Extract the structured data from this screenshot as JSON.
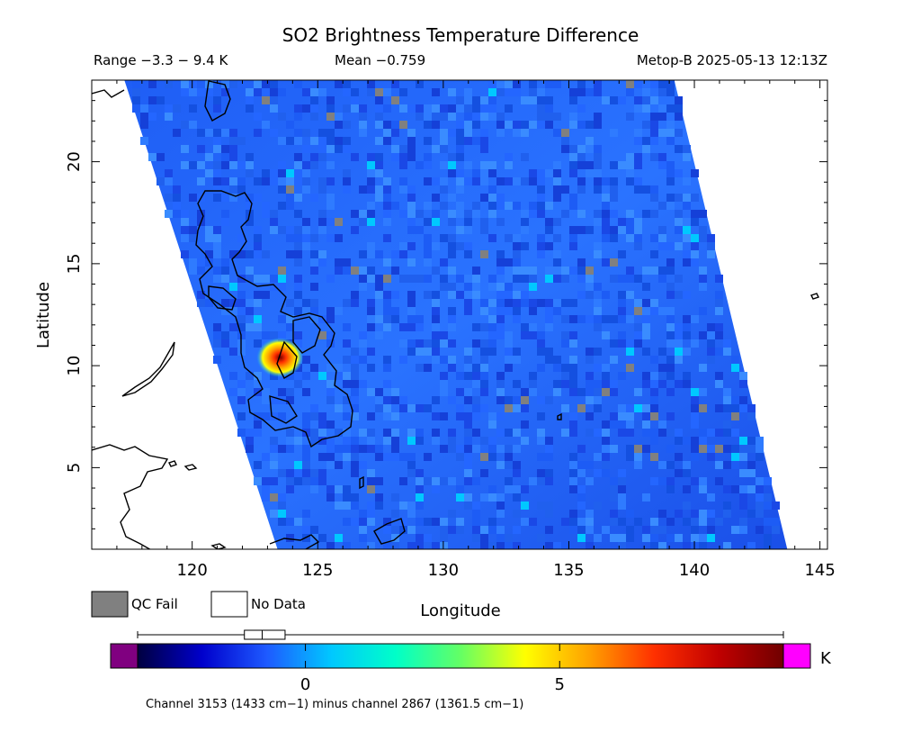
{
  "title": "SO2 Brightness Temperature Difference",
  "stats": {
    "range": "Range −3.3 − 9.4 K",
    "mean": "Mean −0.759",
    "source": "Metop-B 2025-05-13 12:13Z"
  },
  "axes": {
    "xlabel": "Longitude",
    "ylabel": "Latitude",
    "xlim": [
      116,
      145.3
    ],
    "ylim": [
      1,
      24
    ],
    "xticks": [
      {
        "value": 120,
        "label": "120"
      },
      {
        "value": 125,
        "label": "125"
      },
      {
        "value": 130,
        "label": "130"
      },
      {
        "value": 135,
        "label": "135"
      },
      {
        "value": 140,
        "label": "140"
      },
      {
        "value": 145,
        "label": "145"
      }
    ],
    "yticks": [
      {
        "value": 5,
        "label": "5"
      },
      {
        "value": 10,
        "label": "10"
      },
      {
        "value": 15,
        "label": "15"
      },
      {
        "value": 20,
        "label": "20"
      }
    ]
  },
  "legend": {
    "qc_fail": "QC Fail",
    "no_data": "No Data",
    "qc_fail_color": "#808080"
  },
  "colorbar": {
    "unit": "K",
    "vmin": -3.3,
    "vmax": 9.4,
    "ticks": [
      {
        "value": 0,
        "label": "0"
      },
      {
        "value": 5,
        "label": "5"
      }
    ],
    "under_color": "#800080",
    "over_color": "#ff00ff",
    "stops": [
      "#000040",
      "#0000cc",
      "#1e5aff",
      "#00c8ff",
      "#00ffc8",
      "#64ff64",
      "#ffff00",
      "#ffa000",
      "#ff3000",
      "#c00000",
      "#700000"
    ],
    "boxplot": {
      "whisker_low": -3.3,
      "q1": -1.2,
      "median": -0.85,
      "q3": -0.4,
      "whisker_high": 9.4
    }
  },
  "footer": "Channel 3153 (1433 cm−1) minus channel 2867 (1361.5 cm−1)",
  "swath": {
    "corners_lonlat": [
      [
        117.3,
        24
      ],
      [
        139.2,
        24
      ],
      [
        143.7,
        1
      ],
      [
        123.4,
        1
      ]
    ],
    "base_color": "#1e55f0",
    "hotspot": {
      "lon": 123.5,
      "lat": 10.4,
      "label_value": 9.4
    }
  }
}
